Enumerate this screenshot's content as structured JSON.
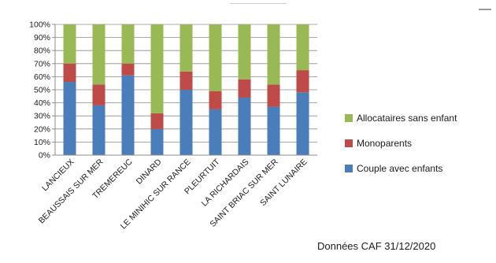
{
  "chart_data": {
    "type": "bar",
    "stacked": true,
    "percent": true,
    "categories": [
      "LANCIEUX",
      "BEAUSSAIS SUR MER",
      "TREMEREUC",
      "DINARD",
      "LE MINIHIC SUR RANCE",
      "PLEURTUIT",
      "LA RICHARDAIS",
      "SAINT BRIAC SUR MER",
      "SAINT LUNAIRE"
    ],
    "series": [
      {
        "name": "Couple avec enfants",
        "color": "#4a7ebb",
        "values": [
          56,
          38,
          61,
          20,
          50,
          35,
          44,
          37,
          48
        ]
      },
      {
        "name": "Monoparents",
        "color": "#be4b48",
        "values": [
          14,
          16,
          9,
          12,
          14,
          14,
          14,
          17,
          17
        ]
      },
      {
        "name": "Allocataires sans enfant",
        "color": "#98b954",
        "values": [
          30,
          46,
          30,
          68,
          36,
          51,
          42,
          46,
          35
        ]
      }
    ],
    "yticks": [
      "0%",
      "10%",
      "20%",
      "30%",
      "40%",
      "50%",
      "60%",
      "70%",
      "80%",
      "90%",
      "100%"
    ],
    "ylim": [
      0,
      100
    ],
    "legend": {
      "position": "right",
      "entries": [
        "Allocataires sans enfant",
        "Monoparents",
        "Couple avec enfants"
      ]
    },
    "grid": true,
    "title": "",
    "xlabel": "",
    "ylabel": ""
  },
  "source_note": "Données CAF 31/12/2020"
}
